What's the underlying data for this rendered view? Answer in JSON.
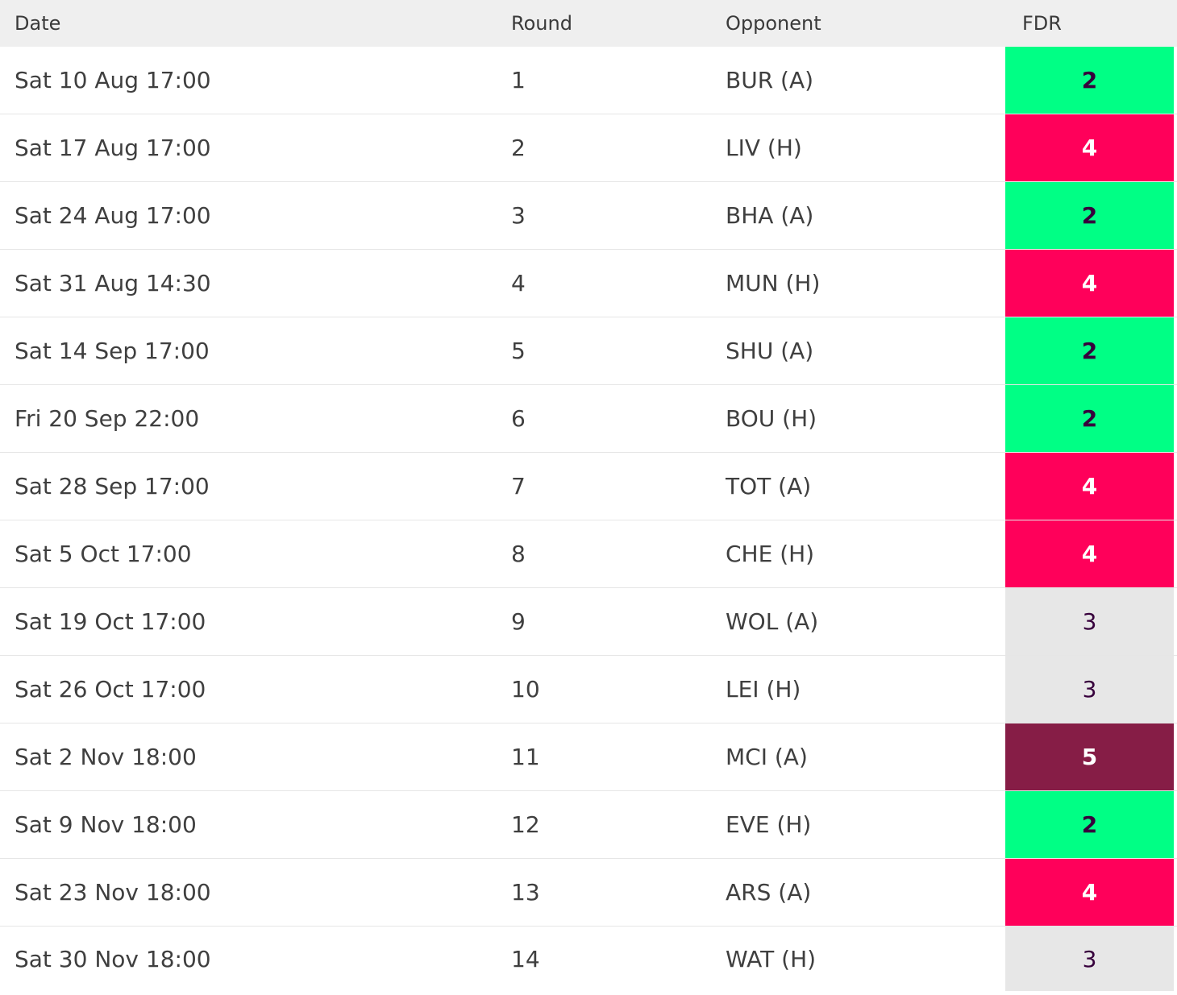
{
  "table": {
    "headers": {
      "date": "Date",
      "round": "Round",
      "opponent": "Opponent",
      "fdr": "FDR"
    },
    "rows": [
      {
        "date": "Sat 10 Aug 17:00",
        "round": "1",
        "opponent": "BUR (A)",
        "fdr": "2"
      },
      {
        "date": "Sat 17 Aug 17:00",
        "round": "2",
        "opponent": "LIV (H)",
        "fdr": "4"
      },
      {
        "date": "Sat 24 Aug 17:00",
        "round": "3",
        "opponent": "BHA (A)",
        "fdr": "2"
      },
      {
        "date": "Sat 31 Aug 14:30",
        "round": "4",
        "opponent": "MUN (H)",
        "fdr": "4"
      },
      {
        "date": "Sat 14 Sep 17:00",
        "round": "5",
        "opponent": "SHU (A)",
        "fdr": "2"
      },
      {
        "date": "Fri 20 Sep 22:00",
        "round": "6",
        "opponent": "BOU (H)",
        "fdr": "2"
      },
      {
        "date": "Sat 28 Sep 17:00",
        "round": "7",
        "opponent": "TOT (A)",
        "fdr": "4"
      },
      {
        "date": "Sat 5 Oct 17:00",
        "round": "8",
        "opponent": "CHE (H)",
        "fdr": "4"
      },
      {
        "date": "Sat 19 Oct 17:00",
        "round": "9",
        "opponent": "WOL (A)",
        "fdr": "3"
      },
      {
        "date": "Sat 26 Oct 17:00",
        "round": "10",
        "opponent": "LEI (H)",
        "fdr": "3"
      },
      {
        "date": "Sat 2 Nov 18:00",
        "round": "11",
        "opponent": "MCI (A)",
        "fdr": "5"
      },
      {
        "date": "Sat 9 Nov 18:00",
        "round": "12",
        "opponent": "EVE (H)",
        "fdr": "2"
      },
      {
        "date": "Sat 23 Nov 18:00",
        "round": "13",
        "opponent": "ARS (A)",
        "fdr": "4"
      },
      {
        "date": "Sat 30 Nov 18:00",
        "round": "14",
        "opponent": "WAT (H)",
        "fdr": "3"
      }
    ]
  },
  "colors": {
    "fdr_2": "#00ff85",
    "fdr_3": "#e7e7e7",
    "fdr_4": "#ff005a",
    "fdr_5": "#861d46"
  }
}
